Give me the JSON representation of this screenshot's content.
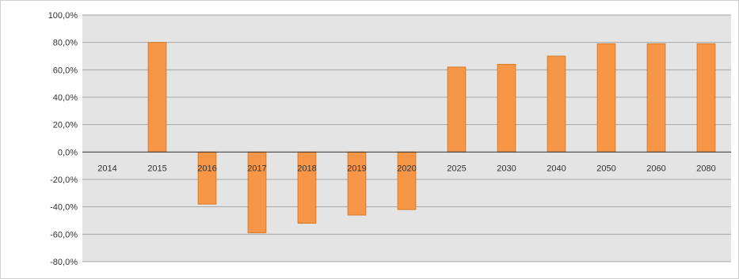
{
  "chart_data": {
    "type": "bar",
    "title": "",
    "xlabel": "",
    "ylabel": "",
    "categories": [
      "2014",
      "2015",
      "2016",
      "2017",
      "2018",
      "2019",
      "2020",
      "2025",
      "2030",
      "2040",
      "2050",
      "2060",
      "2080"
    ],
    "values": [
      0.0,
      80.0,
      -38.0,
      -59.0,
      -52.0,
      -46.0,
      -42.0,
      62.0,
      64.0,
      70.0,
      79.0,
      79.0,
      79.0
    ],
    "ylim": [
      -80.0,
      100.0
    ],
    "yticks": [
      100,
      80,
      60,
      40,
      20,
      0,
      -20,
      -40,
      -60,
      -80
    ],
    "ytick_labels": [
      "100,0%",
      "80,0%",
      "60,0%",
      "40,0%",
      "20,0%",
      "0,0%",
      "-20,0%",
      "-40,0%",
      "-60,0%",
      "-80,0%"
    ],
    "grid": true,
    "legend": "none",
    "bar_color": "#f79646",
    "bar_edge_color": "#d77a2a",
    "plot_background": "#e4e4e4",
    "grid_color": "#a6a6a6",
    "zero_line_color": "#333333"
  }
}
